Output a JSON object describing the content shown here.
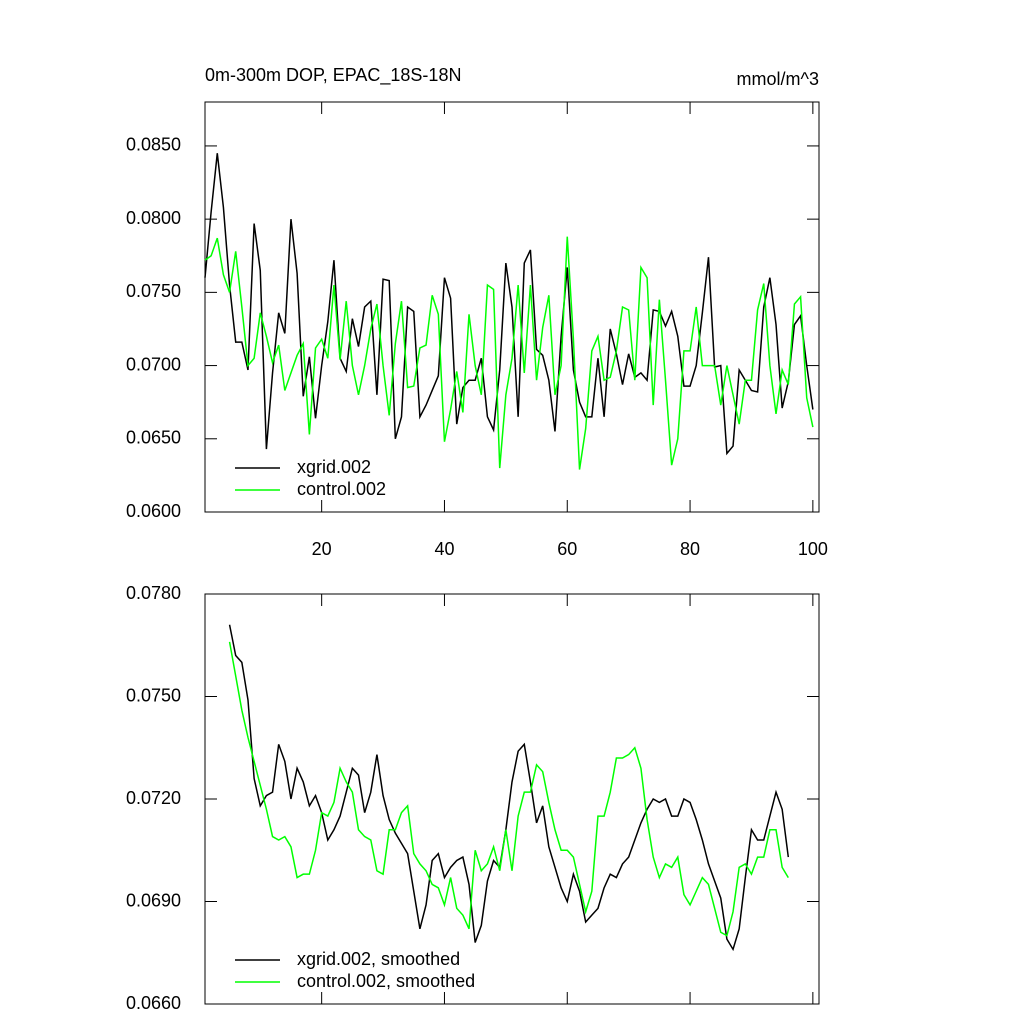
{
  "chart_data": [
    {
      "type": "line",
      "title": "0m-300m DOP, EPAC_18S-18N",
      "units": "mmol/m^3",
      "xlim": [
        1,
        101
      ],
      "xticks": [
        20,
        40,
        60,
        80,
        100
      ],
      "show_xtick_labels": true,
      "ylim": [
        0.06,
        0.088
      ],
      "yticks": [
        {
          "value": 0.06,
          "label": "0.0600"
        },
        {
          "value": 0.065,
          "label": "0.0650"
        },
        {
          "value": 0.07,
          "label": "0.0700"
        },
        {
          "value": 0.075,
          "label": "0.0750"
        },
        {
          "value": 0.08,
          "label": "0.0800"
        },
        {
          "value": 0.085,
          "label": "0.0850"
        }
      ],
      "legend": "lower left",
      "x": [
        1,
        2,
        3,
        4,
        5,
        6,
        7,
        8,
        9,
        10,
        11,
        12,
        13,
        14,
        15,
        16,
        17,
        18,
        19,
        20,
        21,
        22,
        23,
        24,
        25,
        26,
        27,
        28,
        29,
        30,
        31,
        32,
        33,
        34,
        35,
        36,
        37,
        38,
        39,
        40,
        41,
        42,
        43,
        44,
        45,
        46,
        47,
        48,
        49,
        50,
        51,
        52,
        53,
        54,
        55,
        56,
        57,
        58,
        59,
        60,
        61,
        62,
        63,
        64,
        65,
        66,
        67,
        68,
        69,
        70,
        71,
        72,
        73,
        74,
        75,
        76,
        77,
        78,
        79,
        80,
        81,
        82,
        83,
        84,
        85,
        86,
        87,
        88,
        89,
        90,
        91,
        92,
        93,
        94,
        95,
        96,
        97,
        98,
        99,
        100
      ],
      "series": [
        {
          "name": "xgrid.002",
          "color": "#000000",
          "values": [
            0.076,
            0.0805,
            0.0845,
            0.0808,
            0.0755,
            0.0716,
            0.0716,
            0.0697,
            0.0797,
            0.0765,
            0.0643,
            0.0695,
            0.0736,
            0.0722,
            0.08,
            0.0763,
            0.0679,
            0.0706,
            0.0664,
            0.07,
            0.073,
            0.0772,
            0.0705,
            0.0696,
            0.0732,
            0.0713,
            0.074,
            0.0744,
            0.068,
            0.0759,
            0.0758,
            0.065,
            0.0665,
            0.074,
            0.0737,
            0.0665,
            0.0673,
            0.0683,
            0.0693,
            0.076,
            0.0746,
            0.066,
            0.0685,
            0.069,
            0.069,
            0.0705,
            0.0665,
            0.0656,
            0.0697,
            0.077,
            0.074,
            0.0665,
            0.077,
            0.0779,
            0.0711,
            0.0707,
            0.069,
            0.0655,
            0.072,
            0.0767,
            0.0697,
            0.0675,
            0.0665,
            0.0665,
            0.0705,
            0.0665,
            0.0725,
            0.0708,
            0.0687,
            0.0708,
            0.0692,
            0.0695,
            0.069,
            0.0738,
            0.0737,
            0.0727,
            0.0737,
            0.072,
            0.0686,
            0.0686,
            0.07,
            0.0736,
            0.0774,
            0.0699,
            0.07,
            0.064,
            0.0645,
            0.0697,
            0.069,
            0.0683,
            0.0682,
            0.074,
            0.076,
            0.0728,
            0.0671,
            0.0689,
            0.0728,
            0.0734,
            0.07,
            0.067
          ]
        },
        {
          "name": "control.002",
          "color": "#00ff00",
          "values": [
            0.0772,
            0.0775,
            0.0787,
            0.0762,
            0.075,
            0.0778,
            0.074,
            0.07,
            0.0705,
            0.0736,
            0.072,
            0.0702,
            0.0714,
            0.0683,
            0.0695,
            0.0707,
            0.0715,
            0.0653,
            0.0712,
            0.0718,
            0.0705,
            0.0755,
            0.0704,
            0.0744,
            0.07,
            0.068,
            0.07,
            0.0725,
            0.0742,
            0.07,
            0.0666,
            0.0715,
            0.0744,
            0.0685,
            0.0686,
            0.0712,
            0.0714,
            0.0748,
            0.0735,
            0.0648,
            0.067,
            0.0696,
            0.0668,
            0.0735,
            0.07,
            0.068,
            0.0755,
            0.0752,
            0.063,
            0.068,
            0.0705,
            0.0755,
            0.0695,
            0.0755,
            0.069,
            0.0726,
            0.0748,
            0.068,
            0.07,
            0.0788,
            0.0718,
            0.0629,
            0.0657,
            0.071,
            0.072,
            0.069,
            0.0692,
            0.071,
            0.074,
            0.0738,
            0.069,
            0.0767,
            0.076,
            0.0673,
            0.0745,
            0.069,
            0.0632,
            0.065,
            0.071,
            0.071,
            0.074,
            0.07,
            0.07,
            0.07,
            0.0673,
            0.07,
            0.068,
            0.066,
            0.069,
            0.069,
            0.0738,
            0.0756,
            0.07,
            0.0667,
            0.0697,
            0.0687,
            0.0742,
            0.0747,
            0.0678,
            0.0658
          ]
        }
      ]
    },
    {
      "type": "line",
      "xlim": [
        1,
        101
      ],
      "xticks": [
        20,
        40,
        60,
        80,
        100
      ],
      "show_xtick_labels": false,
      "ylim": [
        0.066,
        0.078
      ],
      "yticks": [
        {
          "value": 0.066,
          "label": "0.0660"
        },
        {
          "value": 0.069,
          "label": "0.0690"
        },
        {
          "value": 0.072,
          "label": "0.0720"
        },
        {
          "value": 0.075,
          "label": "0.0750"
        },
        {
          "value": 0.078,
          "label": "0.0780"
        }
      ],
      "legend": "lower left",
      "x": [
        5,
        6,
        7,
        8,
        9,
        10,
        11,
        12,
        13,
        14,
        15,
        16,
        17,
        18,
        19,
        20,
        21,
        22,
        23,
        24,
        25,
        26,
        27,
        28,
        29,
        30,
        31,
        32,
        33,
        34,
        35,
        36,
        37,
        38,
        39,
        40,
        41,
        42,
        43,
        44,
        45,
        46,
        47,
        48,
        49,
        50,
        51,
        52,
        53,
        54,
        55,
        56,
        57,
        58,
        59,
        60,
        61,
        62,
        63,
        64,
        65,
        66,
        67,
        68,
        69,
        70,
        71,
        72,
        73,
        74,
        75,
        76,
        77,
        78,
        79,
        80,
        81,
        82,
        83,
        84,
        85,
        86,
        87,
        88,
        89,
        90,
        91,
        92,
        93,
        94,
        95,
        96
      ],
      "series": [
        {
          "name": "xgrid.002, smoothed",
          "color": "#000000",
          "values": [
            0.0771,
            0.0762,
            0.076,
            0.0749,
            0.0726,
            0.0718,
            0.0721,
            0.0722,
            0.0736,
            0.0731,
            0.072,
            0.0729,
            0.0725,
            0.0718,
            0.0721,
            0.0716,
            0.0708,
            0.0711,
            0.0715,
            0.0722,
            0.0729,
            0.0727,
            0.0716,
            0.0722,
            0.0733,
            0.0721,
            0.0714,
            0.071,
            0.0707,
            0.0704,
            0.0693,
            0.0682,
            0.0689,
            0.0702,
            0.0704,
            0.0697,
            0.07,
            0.0702,
            0.0703,
            0.0695,
            0.0678,
            0.0683,
            0.0696,
            0.0702,
            0.07,
            0.0711,
            0.0725,
            0.0734,
            0.0736,
            0.0725,
            0.0713,
            0.0718,
            0.0706,
            0.07,
            0.0694,
            0.069,
            0.0698,
            0.0693,
            0.0684,
            0.0686,
            0.0688,
            0.0694,
            0.0698,
            0.0697,
            0.0701,
            0.0703,
            0.0708,
            0.0713,
            0.0717,
            0.072,
            0.0719,
            0.072,
            0.0715,
            0.0715,
            0.072,
            0.0719,
            0.0714,
            0.0708,
            0.0701,
            0.0696,
            0.0691,
            0.0679,
            0.0676,
            0.0682,
            0.0697,
            0.0711,
            0.0708,
            0.0708,
            0.0715,
            0.0722,
            0.0717,
            0.0703
          ]
        },
        {
          "name": "control.002, smoothed",
          "color": "#00ff00",
          "values": [
            0.0766,
            0.0756,
            0.0746,
            0.0738,
            0.0731,
            0.0724,
            0.0717,
            0.0709,
            0.0708,
            0.0709,
            0.0706,
            0.0697,
            0.0698,
            0.0698,
            0.0705,
            0.0716,
            0.0715,
            0.0719,
            0.0729,
            0.0725,
            0.0722,
            0.0711,
            0.0709,
            0.0708,
            0.0699,
            0.0698,
            0.0711,
            0.0711,
            0.0716,
            0.0718,
            0.0704,
            0.0701,
            0.0699,
            0.0695,
            0.0694,
            0.0689,
            0.0697,
            0.0688,
            0.0686,
            0.0682,
            0.0705,
            0.0699,
            0.0701,
            0.0706,
            0.0699,
            0.0711,
            0.0699,
            0.0715,
            0.0722,
            0.0722,
            0.073,
            0.0728,
            0.0719,
            0.0711,
            0.0705,
            0.0705,
            0.0703,
            0.0695,
            0.0687,
            0.0693,
            0.0715,
            0.0715,
            0.0722,
            0.0732,
            0.0732,
            0.0733,
            0.0735,
            0.0729,
            0.0714,
            0.0703,
            0.0697,
            0.0701,
            0.07,
            0.0703,
            0.0692,
            0.0689,
            0.0693,
            0.0697,
            0.0695,
            0.0688,
            0.0681,
            0.068,
            0.0687,
            0.07,
            0.0701,
            0.0698,
            0.0703,
            0.0703,
            0.0711,
            0.0711,
            0.07,
            0.0697
          ]
        }
      ]
    }
  ]
}
